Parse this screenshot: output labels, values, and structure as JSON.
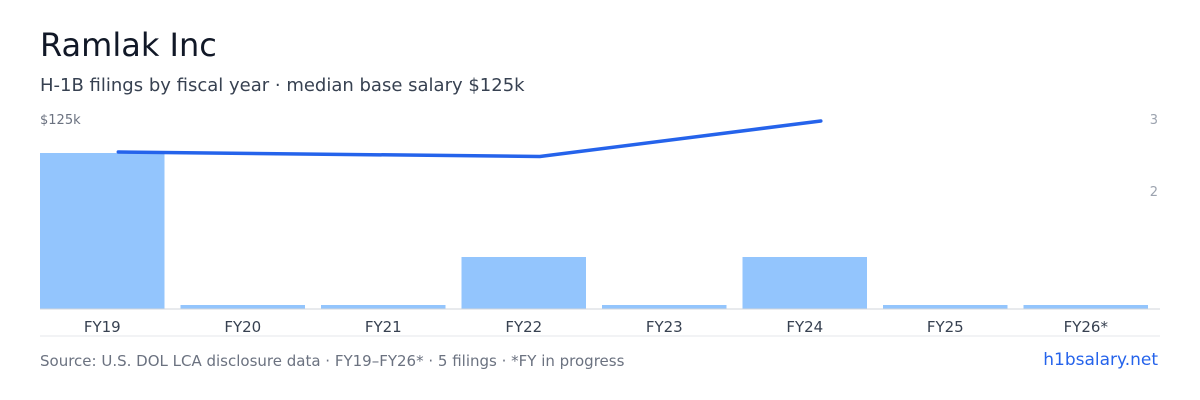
{
  "header": {
    "title": "Ramlak Inc",
    "subtitle": "H-1B filings by fiscal year · median base salary $125k"
  },
  "footer": {
    "source": "Source: U.S. DOL LCA disclosure data · FY19–FY26* · 5 filings · *FY in progress",
    "brand": "h1bsalary.net"
  },
  "chart_data": {
    "type": "bar",
    "categories": [
      "FY19",
      "FY20",
      "FY21",
      "FY22",
      "FY23",
      "FY24",
      "FY25",
      "FY26*"
    ],
    "series": [
      {
        "type": "bar",
        "axis": "left",
        "values": [
          3,
          0,
          0,
          1,
          0,
          1,
          0,
          0
        ],
        "color": "#93c5fd"
      },
      {
        "type": "line",
        "axis": "left",
        "values": [
          125000,
          null,
          null,
          124200,
          null,
          130500,
          null,
          null
        ],
        "color": "#2563eb"
      }
    ],
    "y_left_label": "$125k",
    "y_right_ticks": [
      "3",
      "2"
    ],
    "colors": {
      "bar": "#93c5fd",
      "line": "#2563eb",
      "axis": "#d1d5db"
    }
  }
}
